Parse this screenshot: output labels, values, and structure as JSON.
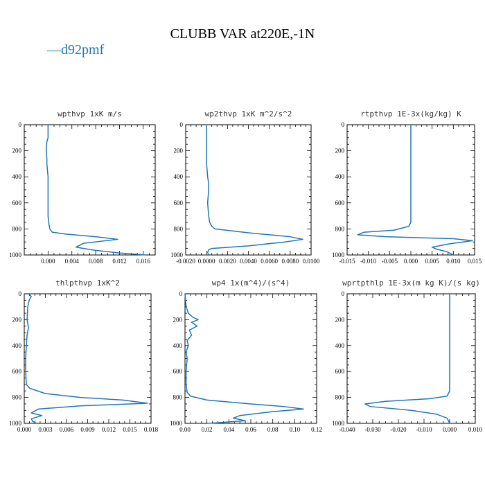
{
  "figure": {
    "title": "CLUBB VAR at220E,-1N",
    "legend": {
      "label": "d92pmf",
      "marker": "—",
      "color": "#1f77b4"
    }
  },
  "chart_data": [
    {
      "type": "line",
      "title": "wpthvp   1xK m/s",
      "xlim": [
        -0.004,
        0.018
      ],
      "ylim": [
        0,
        1000
      ],
      "xticks": [
        0.0,
        0.004,
        0.008,
        0.012,
        0.016
      ],
      "xtick_labels": [
        "0.000",
        "0.004",
        "0.008",
        "0.012",
        "0.016"
      ],
      "yticks": [
        0,
        200,
        400,
        600,
        800,
        1000
      ],
      "ytick_labels": [
        "0",
        "200",
        "400",
        "600",
        "800",
        "1000"
      ],
      "series": [
        {
          "name": "d92pmf",
          "color": "#1f77b4",
          "x": [
            0.0,
            0.0,
            -0.0002,
            -0.0003,
            -0.0002,
            -0.0002,
            -0.0001,
            0.0,
            0.0,
            0.0,
            0.0,
            0.0001,
            0.0003,
            0.0007,
            0.003,
            0.008,
            0.0117,
            0.006,
            0.0047,
            0.008,
            0.012,
            0.0165
          ],
          "y": [
            0,
            100,
            130,
            200,
            260,
            300,
            350,
            400,
            500,
            600,
            700,
            750,
            800,
            825,
            840,
            860,
            880,
            910,
            940,
            965,
            985,
            1000
          ]
        }
      ]
    },
    {
      "type": "line",
      "title": "wp2thvp   1xK m^2/s^2",
      "xlim": [
        -0.002,
        0.01
      ],
      "ylim": [
        0,
        1000
      ],
      "xticks": [
        -0.002,
        0.0,
        0.002,
        0.004,
        0.006,
        0.008,
        0.01
      ],
      "xtick_labels": [
        "-0.0020",
        "0.0000",
        "0.0020",
        "0.0040",
        "0.0060",
        "0.0080",
        "0.0100"
      ],
      "yticks": [
        0,
        200,
        400,
        600,
        800,
        1000
      ],
      "ytick_labels": [
        "0",
        "200",
        "400",
        "600",
        "800",
        "1000"
      ],
      "series": [
        {
          "name": "d92pmf",
          "color": "#1f77b4",
          "x": [
            0.0,
            0.0,
            0.0,
            0.0001,
            0.0002,
            0.0002,
            0.0001,
            0.0002,
            0.0003,
            0.0005,
            0.0008,
            0.004,
            0.008,
            0.0092,
            0.0075,
            0.004,
            0.0005,
            0.0002,
            0.0001,
            0.0002
          ],
          "y": [
            0,
            100,
            300,
            400,
            450,
            500,
            600,
            700,
            750,
            780,
            800,
            830,
            860,
            880,
            900,
            930,
            950,
            960,
            980,
            1000
          ]
        }
      ]
    },
    {
      "type": "line",
      "title": "rtpthvp   1E-3x(kg/kg) K",
      "xlim": [
        -0.015,
        0.015
      ],
      "ylim": [
        0,
        1000
      ],
      "xticks": [
        -0.015,
        -0.01,
        -0.005,
        0.0,
        0.005,
        0.01,
        0.015
      ],
      "xtick_labels": [
        "-0.015",
        "-0.010",
        "-0.005",
        "0.000",
        "0.005",
        "0.010",
        "0.015"
      ],
      "yticks": [
        0,
        200,
        400,
        600,
        800,
        1000
      ],
      "ytick_labels": [
        "0",
        "200",
        "400",
        "600",
        "800",
        "1000"
      ],
      "series": [
        {
          "name": "d92pmf",
          "color": "#1f77b4",
          "x": [
            0.0,
            0.0,
            0.0,
            0.0,
            0.0,
            -0.0005,
            -0.004,
            -0.011,
            -0.0125,
            -0.006,
            0.01,
            0.0145,
            0.009,
            0.005,
            0.006,
            0.0085,
            0.01
          ],
          "y": [
            0,
            200,
            500,
            700,
            750,
            780,
            810,
            825,
            845,
            860,
            875,
            890,
            915,
            940,
            955,
            975,
            1000
          ]
        }
      ]
    },
    {
      "type": "line",
      "title": "thlpthvp   1xK^2",
      "xlim": [
        0.0,
        0.018
      ],
      "ylim": [
        0,
        1000
      ],
      "xticks": [
        0.0,
        0.003,
        0.006,
        0.009,
        0.012,
        0.015,
        0.018
      ],
      "xtick_labels": [
        "0.000",
        "0.003",
        "0.006",
        "0.009",
        "0.012",
        "0.015",
        "0.018"
      ],
      "yticks": [
        0,
        200,
        400,
        600,
        800,
        1000
      ],
      "ytick_labels": [
        "0",
        "200",
        "400",
        "600",
        "800",
        "1000"
      ],
      "series": [
        {
          "name": "d92pmf",
          "color": "#1f77b4",
          "x": [
            0.0006,
            0.001,
            0.0007,
            0.0005,
            0.0004,
            0.0006,
            0.0004,
            0.0003,
            0.0002,
            0.0002,
            0.0003,
            0.0008,
            0.003,
            0.008,
            0.014,
            0.0175,
            0.008,
            0.002,
            0.001,
            0.0025,
            0.001,
            0.0012,
            0.0018
          ],
          "y": [
            0,
            20,
            50,
            100,
            200,
            260,
            320,
            400,
            500,
            600,
            700,
            730,
            770,
            800,
            820,
            845,
            865,
            890,
            920,
            940,
            965,
            985,
            1000
          ]
        }
      ]
    },
    {
      "type": "line",
      "title": "wp4   1x(m^4)/(s^4)",
      "xlim": [
        0.0,
        0.12
      ],
      "ylim": [
        0,
        1000
      ],
      "xticks": [
        0.0,
        0.02,
        0.04,
        0.06,
        0.08,
        0.1,
        0.12
      ],
      "xtick_labels": [
        "0.00",
        "0.02",
        "0.04",
        "0.06",
        "0.08",
        "0.10",
        "0.12"
      ],
      "yticks": [
        0,
        200,
        400,
        600,
        800,
        1000
      ],
      "ytick_labels": [
        "0",
        "200",
        "400",
        "600",
        "800",
        "1000"
      ],
      "series": [
        {
          "name": "d92pmf",
          "color": "#1f77b4",
          "x": [
            0.0,
            0.001,
            0.003,
            0.007,
            0.012,
            0.006,
            0.011,
            0.004,
            0.006,
            0.002,
            0.003,
            0.001,
            0.002,
            0.001,
            0.001,
            0.002,
            0.005,
            0.02,
            0.06,
            0.09,
            0.108,
            0.08,
            0.05,
            0.044,
            0.055,
            0.03,
            0.02
          ],
          "y": [
            0,
            100,
            150,
            180,
            200,
            220,
            250,
            280,
            320,
            360,
            400,
            450,
            500,
            600,
            700,
            760,
            790,
            820,
            850,
            870,
            890,
            910,
            940,
            960,
            980,
            995,
            1000
          ]
        }
      ]
    },
    {
      "type": "line",
      "title": "wprtpthlp   1E-3x(m kg K)/(s kg)",
      "xlim": [
        -0.04,
        0.01
      ],
      "ylim": [
        0,
        1000
      ],
      "xticks": [
        -0.04,
        -0.03,
        -0.02,
        -0.01,
        0.0,
        0.01
      ],
      "xtick_labels": [
        "-0.040",
        "-0.030",
        "-0.020",
        "-0.010",
        "0.000",
        "0.010"
      ],
      "yticks": [
        0,
        200,
        400,
        600,
        800,
        1000
      ],
      "ytick_labels": [
        "0",
        "200",
        "400",
        "600",
        "800",
        "1000"
      ],
      "series": [
        {
          "name": "d92pmf",
          "color": "#1f77b4",
          "x": [
            0.0,
            0.0,
            0.0,
            0.0,
            0.0,
            0.0,
            -0.001,
            -0.008,
            -0.025,
            -0.033,
            -0.031,
            -0.015,
            -0.005,
            -0.001,
            0.0
          ],
          "y": [
            0,
            200,
            400,
            600,
            700,
            750,
            790,
            810,
            830,
            850,
            870,
            900,
            930,
            960,
            1000
          ]
        }
      ]
    }
  ]
}
